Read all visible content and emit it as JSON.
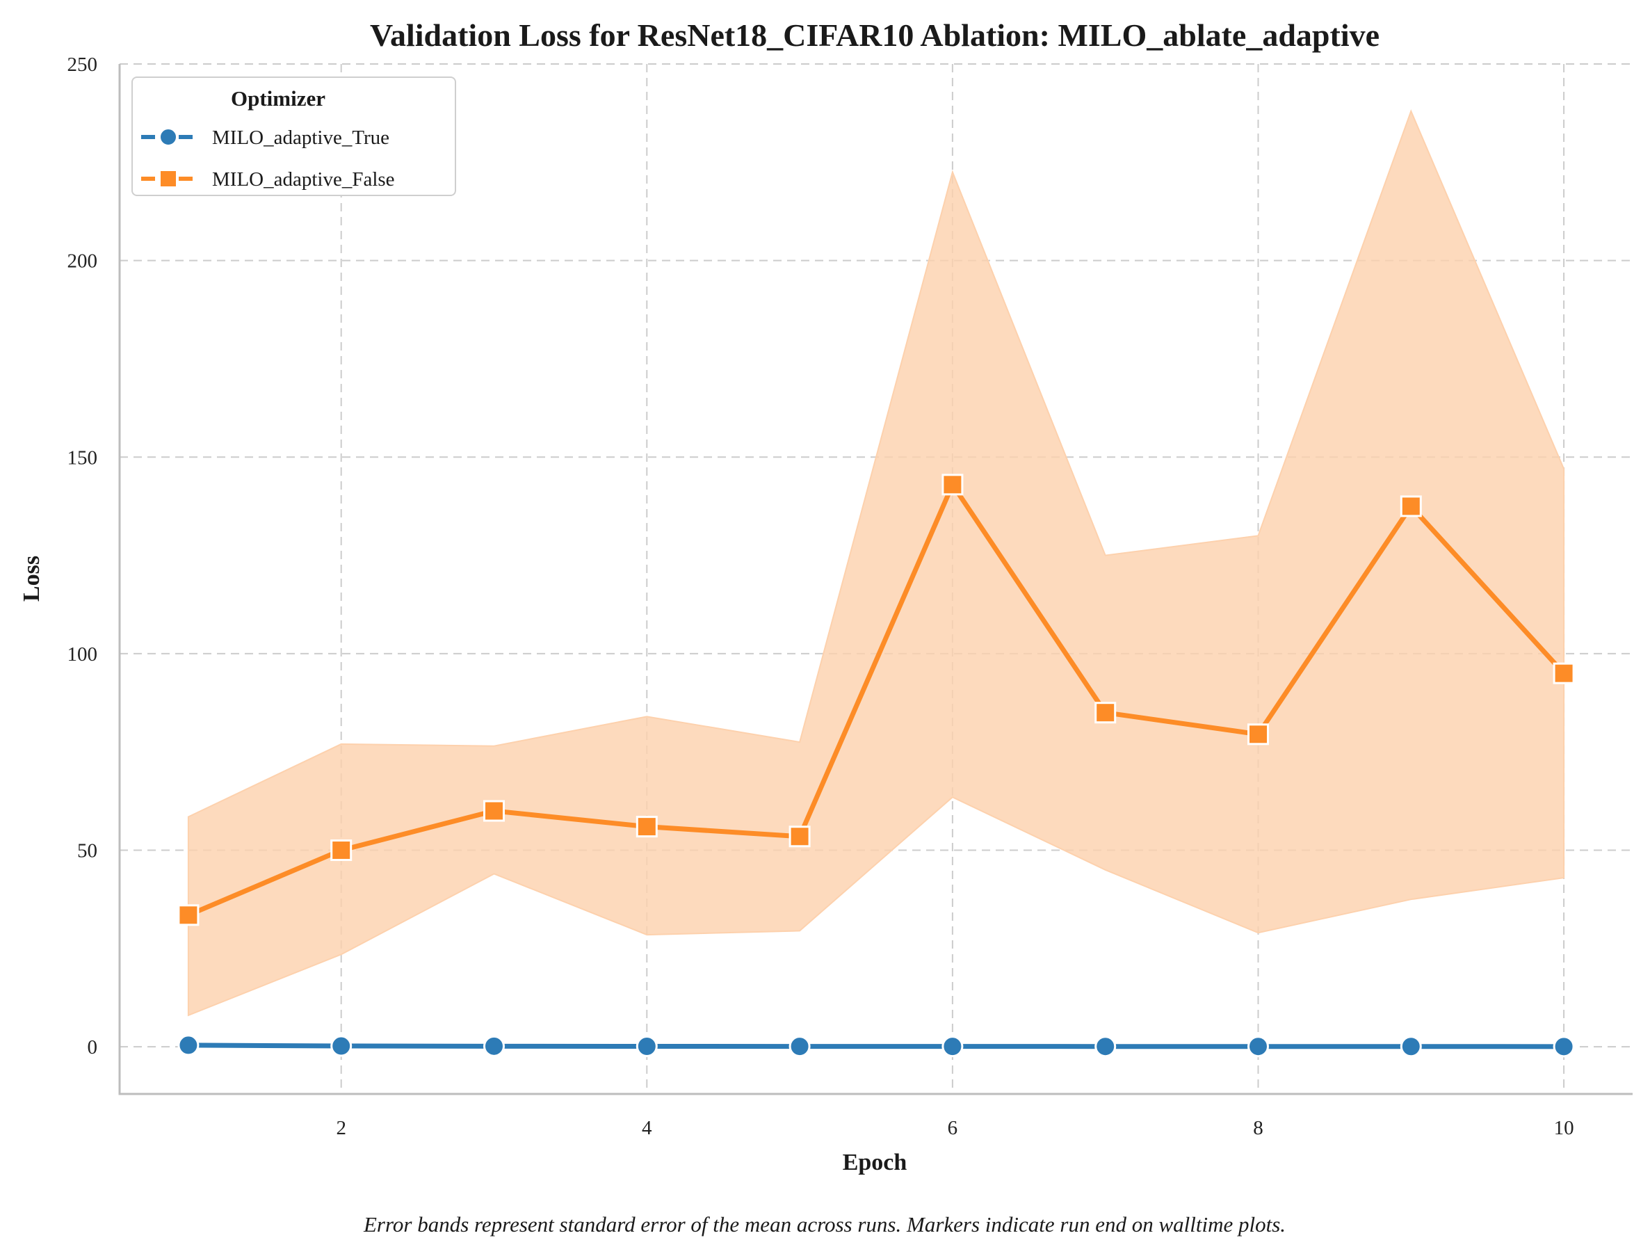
{
  "chart_data": {
    "type": "line",
    "title": "Validation Loss for ResNet18_CIFAR10 Ablation: MILO_ablate_adaptive",
    "xlabel": "Epoch",
    "ylabel": "Loss",
    "xlim": [
      0.55,
      10.45
    ],
    "ylim": [
      -12,
      250
    ],
    "x_ticks": [
      2,
      4,
      6,
      8,
      10
    ],
    "y_ticks": [
      0,
      50,
      100,
      150,
      200,
      250
    ],
    "grid": true,
    "legend": {
      "title": "Optimizer",
      "placement": "top-left"
    },
    "caption": "Error bands represent standard error of the mean across runs. Markers indicate run end on walltime plots.",
    "x": [
      1,
      2,
      3,
      4,
      5,
      6,
      7,
      8,
      9,
      10
    ],
    "series": [
      {
        "name": "MILO_adaptive_True",
        "color": "#2d7bb6",
        "marker": "circle",
        "values": [
          0.4,
          0.2,
          0.15,
          0.12,
          0.1,
          0.1,
          0.08,
          0.08,
          0.07,
          0.06
        ],
        "lower": [
          0.3,
          0.1,
          0.05,
          0.03,
          0.02,
          0.02,
          0.01,
          0.01,
          0.01,
          0.0
        ],
        "upper": [
          0.5,
          0.3,
          0.25,
          0.2,
          0.18,
          0.18,
          0.15,
          0.15,
          0.13,
          0.12
        ]
      },
      {
        "name": "MILO_adaptive_False",
        "color": "#fd8c27",
        "band_color": "#fdd1ad",
        "marker": "square",
        "values": [
          33.5,
          50,
          60,
          56,
          53.5,
          143,
          85,
          79.5,
          137.5,
          95
        ],
        "lower": [
          8,
          23.5,
          44,
          28.5,
          29.5,
          63.5,
          45,
          29,
          37.5,
          43
        ],
        "upper": [
          58.5,
          77,
          76.5,
          84,
          77.5,
          222.5,
          125,
          130,
          238,
          147
        ]
      }
    ]
  }
}
